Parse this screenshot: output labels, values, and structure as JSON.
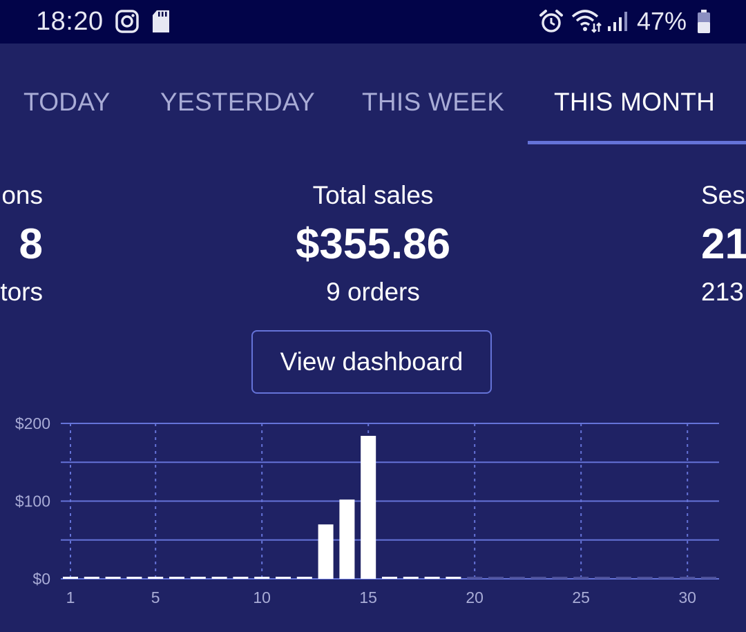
{
  "status_bar": {
    "time": "18:20",
    "battery": "47%",
    "left_icons": [
      "instagram-icon",
      "sd-card-icon"
    ],
    "right_icons": [
      "alarm-icon",
      "wifi-icon",
      "signal-icon",
      "battery-icon"
    ]
  },
  "tabs": [
    {
      "label": "TODAY",
      "active": false
    },
    {
      "label": "YESTERDAY",
      "active": false
    },
    {
      "label": "THIS WEEK",
      "active": false
    },
    {
      "label": "THIS MONTH",
      "active": true
    }
  ],
  "stats": {
    "left": {
      "label": "ons",
      "value": "8",
      "sub": "tors"
    },
    "center": {
      "label": "Total sales",
      "value": "$355.86",
      "sub": "9 orders"
    },
    "right": {
      "label": "Ses",
      "value": "21",
      "sub": "213"
    }
  },
  "dashboard_button": "View dashboard",
  "colors": {
    "background": "#1f2264",
    "status_bar": "#020449",
    "accent": "#6573d8",
    "tab_inactive": "#a9acd6",
    "bar": "#ffffff",
    "future_bar": "#4d5099"
  },
  "chart_data": {
    "type": "bar",
    "y_tick_labels": [
      "$200",
      "$100",
      "$0"
    ],
    "x_tick_labels": [
      "1",
      "5",
      "10",
      "15",
      "20",
      "25",
      "30"
    ],
    "ylim": [
      0,
      200
    ],
    "x": [
      1,
      2,
      3,
      4,
      5,
      6,
      7,
      8,
      9,
      10,
      11,
      12,
      13,
      14,
      15,
      16,
      17,
      18,
      19,
      20,
      21,
      22,
      23,
      24,
      25,
      26,
      27,
      28,
      29,
      30,
      31
    ],
    "values": [
      0,
      0,
      0,
      0,
      0,
      0,
      0,
      0,
      0,
      0,
      0,
      0,
      70,
      102,
      184,
      0,
      0,
      0,
      0,
      0,
      0,
      0,
      0,
      0,
      0,
      0,
      0,
      0,
      0,
      0,
      0
    ],
    "current_day": 19,
    "grid": true
  }
}
